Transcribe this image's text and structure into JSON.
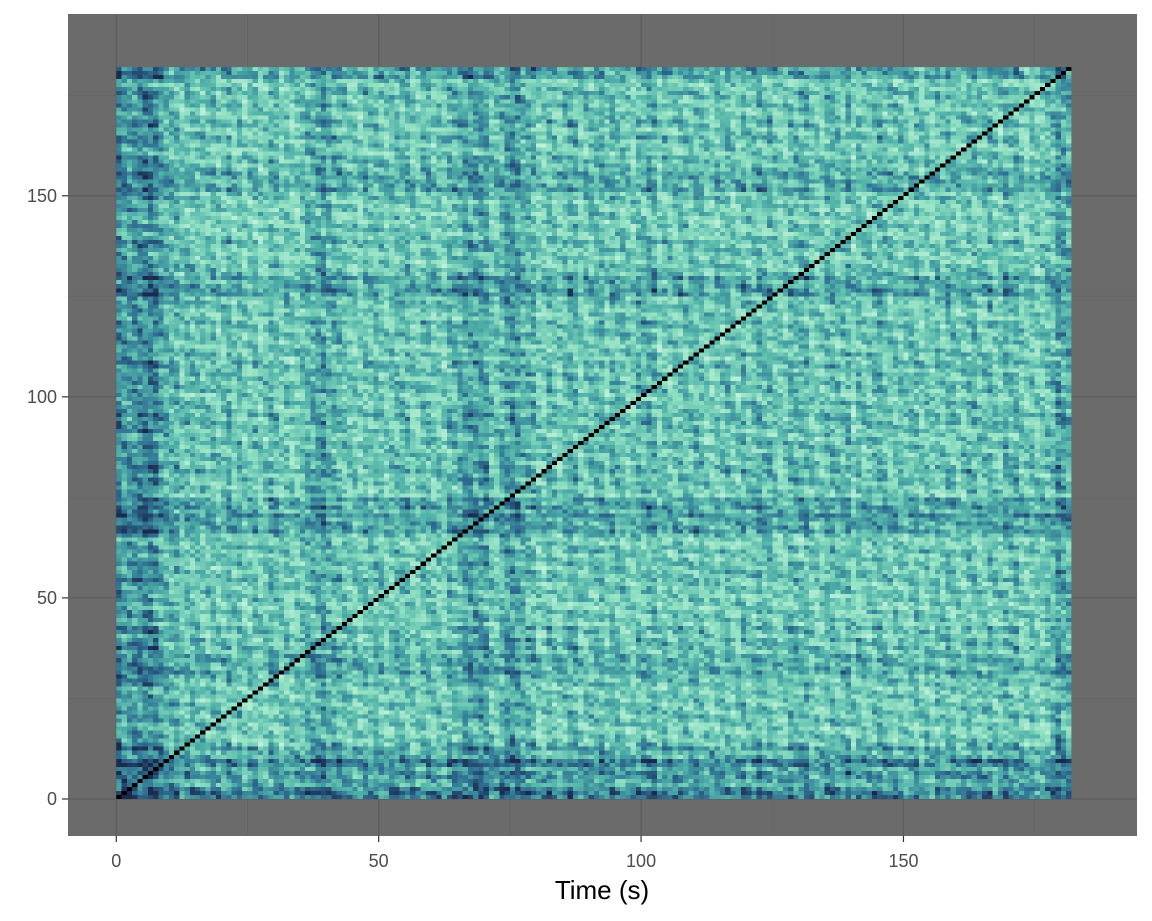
{
  "chart_data": {
    "type": "heatmap",
    "title": "",
    "xlabel": "Time (s)",
    "ylabel": "",
    "x_range": [
      0,
      181
    ],
    "y_range": [
      0,
      181
    ],
    "xlim": [
      -9.2,
      194.5
    ],
    "ylim": [
      -9.2,
      195.2
    ],
    "x_ticks": [
      0,
      50,
      100,
      150
    ],
    "y_ticks": [
      0,
      50,
      100,
      150
    ],
    "x_tick_labels": [
      "0",
      "50",
      "100",
      "150"
    ],
    "y_tick_labels": [
      "0",
      "50",
      "100",
      "150"
    ],
    "grid": true,
    "legend": "none",
    "description": "Self-similarity (recurrence) matrix; black main diagonal, values shaded light mint to dark navy",
    "colors": {
      "panel_background": "#6b6b6b",
      "grid_major": "#5c5c5c",
      "grid_minor": "#646464",
      "low": "#c3f0dc",
      "mid_light": "#8fe0c2",
      "mid": "#4fb0a8",
      "mid_dark": "#2f6f93",
      "high": "#1a2a4e",
      "diagonal": "#000000"
    },
    "dark_bands_y": [
      0,
      10,
      33,
      68,
      72,
      127,
      153,
      181
    ],
    "dark_bands_x": [
      0,
      5,
      38,
      68,
      75,
      181
    ]
  }
}
